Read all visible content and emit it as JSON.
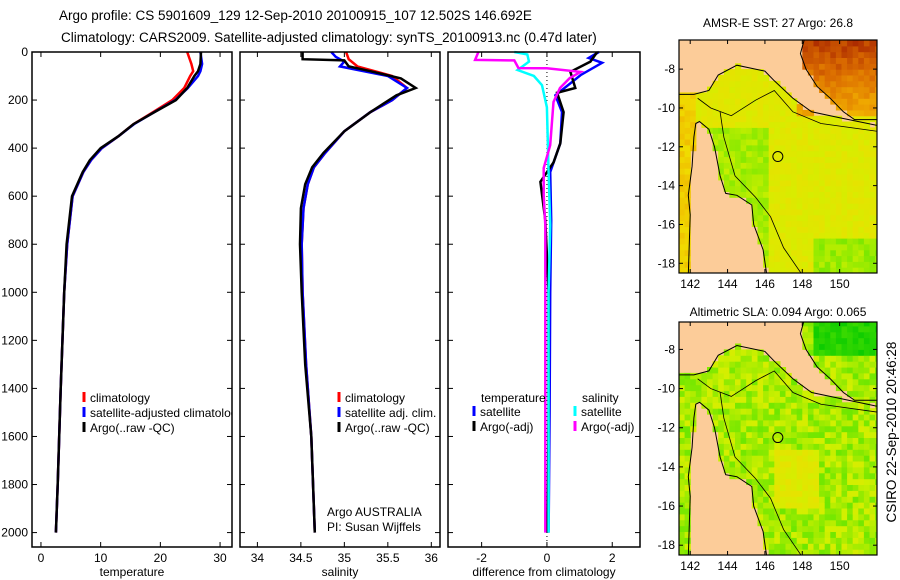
{
  "title_line1": "Argo profile: CS 5901609_129 12-Sep-2010 20100915_107 12.502S 146.692E",
  "title_line2": "Climatology: CARS2009. Satellite-adjusted climatology: synTS_20100913.nc (0.47d later)",
  "credit": "CSIRO 22-Sep-2010 20:46:28",
  "colors": {
    "climatology": "#ff0000",
    "satellite": "#0000ff",
    "argo": "#000000",
    "sal_satellite": "#00ffff",
    "sal_argo": "#ff00ff",
    "land": "#fccc99"
  },
  "chart_data": [
    {
      "type": "line",
      "id": "temperature",
      "xlabel": "temperature",
      "ylabel": "",
      "xlim": [
        -1.5,
        32
      ],
      "ylim": [
        2060,
        0
      ],
      "xticks": [
        0,
        10,
        20,
        30
      ],
      "yticks": [
        0,
        200,
        400,
        600,
        800,
        1000,
        1200,
        1400,
        1600,
        1800,
        2000
      ],
      "legend": [
        "climatology",
        "satellite-adjusted climatolog",
        "Argo(..raw -QC)"
      ],
      "series": [
        {
          "name": "climatology",
          "color": "#ff0000",
          "depth": [
            0,
            50,
            80,
            100,
            150,
            200,
            250,
            300,
            350,
            400,
            450,
            500,
            600,
            800,
            1000,
            1400,
            1800,
            2000
          ],
          "values": [
            24.5,
            25.2,
            25.5,
            25.0,
            24.0,
            22.0,
            18.8,
            15.5,
            13.0,
            10.2,
            8.4,
            7.1,
            5.3,
            4.4,
            3.9,
            3.3,
            2.8,
            2.5
          ]
        },
        {
          "name": "satellite-adjusted climatology",
          "color": "#0000ff",
          "depth": [
            0,
            50,
            80,
            100,
            150,
            200,
            250,
            300,
            350,
            400,
            450,
            500,
            600,
            800,
            1000,
            1400,
            1800,
            2000
          ],
          "values": [
            26.7,
            27.0,
            26.7,
            26.3,
            24.6,
            22.5,
            19.0,
            15.6,
            13.0,
            10.2,
            8.4,
            7.1,
            5.3,
            4.4,
            3.9,
            3.3,
            2.8,
            2.5
          ]
        },
        {
          "name": "Argo(..raw -QC)",
          "color": "#000000",
          "depth": [
            0,
            50,
            80,
            100,
            150,
            200,
            250,
            300,
            350,
            400,
            450,
            500,
            600,
            800,
            1000,
            1400,
            1800,
            2000
          ],
          "values": [
            26.8,
            26.7,
            26.3,
            25.7,
            24.5,
            22.6,
            19.0,
            15.5,
            13.0,
            10.0,
            8.2,
            7.0,
            5.2,
            4.3,
            3.9,
            3.3,
            2.8,
            2.5
          ]
        }
      ]
    },
    {
      "type": "line",
      "id": "salinity",
      "xlabel": "salinity",
      "xlim": [
        33.8,
        36.1
      ],
      "ylim": [
        2060,
        0
      ],
      "xticks": [
        34,
        34.5,
        35,
        35.5,
        36
      ],
      "legend": [
        "climatology",
        "satellite adj. clim.",
        "Argo(..raw -QC)"
      ],
      "annotation": [
        "Argo AUSTRALIA",
        "PI: Susan Wijffels"
      ],
      "series": [
        {
          "name": "climatology",
          "color": "#ff0000",
          "depth": [
            0,
            30,
            60,
            100,
            150,
            200,
            250,
            330,
            420,
            480,
            550,
            650,
            800,
            1000,
            1300,
            1600,
            2000
          ],
          "values": [
            35.02,
            35.05,
            35.15,
            35.55,
            35.72,
            35.55,
            35.3,
            35.0,
            34.78,
            34.65,
            34.58,
            34.53,
            34.51,
            34.52,
            34.56,
            34.62,
            34.66
          ]
        },
        {
          "name": "satellite adj. clim.",
          "color": "#0000ff",
          "depth": [
            0,
            20,
            40,
            60,
            100,
            150,
            200,
            250,
            330,
            420,
            480,
            550,
            650,
            800,
            1000,
            1300,
            1600,
            2000
          ],
          "values": [
            34.85,
            34.9,
            35.0,
            34.95,
            35.5,
            35.72,
            35.55,
            35.3,
            35.0,
            34.78,
            34.65,
            34.58,
            34.53,
            34.51,
            34.52,
            34.56,
            34.62,
            34.66
          ]
        },
        {
          "name": "Argo(..raw -QC)",
          "color": "#000000",
          "depth": [
            0,
            30,
            35,
            60,
            80,
            110,
            150,
            180,
            250,
            330,
            420,
            480,
            550,
            650,
            800,
            1000,
            1300,
            1600,
            2000
          ],
          "values": [
            34.52,
            34.52,
            35.0,
            35.05,
            35.3,
            35.65,
            35.82,
            35.6,
            35.3,
            35.0,
            34.76,
            34.63,
            34.55,
            34.5,
            34.49,
            34.51,
            34.55,
            34.62,
            34.66
          ]
        }
      ]
    },
    {
      "type": "line",
      "id": "difference",
      "xlabel": "difference from climatology",
      "xlim": [
        -3.03,
        2.85
      ],
      "ylim": [
        2060,
        0
      ],
      "xticks": [
        -2,
        0,
        2
      ],
      "legend": {
        "temperature_title": "temperature",
        "salinity_title": "salinity",
        "items": [
          "satellite",
          "Argo(-adj)",
          "satellite",
          "Argo(-adj)"
        ]
      },
      "series": [
        {
          "name": "temperature satellite",
          "color": "#0000ff",
          "depth": [
            0,
            25,
            45,
            96,
            180,
            250,
            380,
            500,
            700,
            1000,
            1500,
            2000
          ],
          "values": [
            1.59,
            1.28,
            1.69,
            1.03,
            0.26,
            0.46,
            0.41,
            0.1,
            0.13,
            0.1,
            0.08,
            0.05
          ]
        },
        {
          "name": "temperature Argo(-adj)",
          "color": "#000000",
          "depth": [
            0,
            40,
            83,
            150,
            170,
            250,
            380,
            460,
            540,
            700,
            1000,
            1500,
            2000
          ],
          "values": [
            1.54,
            1.33,
            0.72,
            0.87,
            0.31,
            0.51,
            0.41,
            0.2,
            -0.2,
            -0.05,
            0.05,
            0.05,
            0.02
          ]
        },
        {
          "name": "salinity satellite",
          "color": "#00ffff",
          "depth": [
            0,
            10,
            40,
            75,
            100,
            138,
            230,
            500,
            720,
            1000,
            1500,
            2000
          ],
          "values": [
            -1.0,
            -0.6,
            -0.55,
            -0.9,
            -0.4,
            -0.15,
            0.0,
            0.05,
            0.1,
            0.05,
            0.05,
            0.05
          ]
        },
        {
          "name": "salinity Argo(-adj)",
          "color": "#ff00ff",
          "depth": [
            0,
            33,
            35,
            67,
            68,
            83,
            108,
            150,
            208,
            388,
            483,
            596,
            720,
            1000,
            1500,
            2000
          ],
          "values": [
            -2.1,
            -2.2,
            -1.0,
            -0.87,
            0.0,
            1.03,
            0.7,
            0.4,
            0.2,
            0.1,
            -0.1,
            -0.1,
            -0.05,
            -0.05,
            -0.05,
            -0.05
          ]
        }
      ]
    },
    {
      "type": "heatmap",
      "id": "sst-map",
      "title": "AMSR-E SST: 27 Argo: 26.8",
      "xlim": [
        141.4,
        152
      ],
      "ylim": [
        -18.5,
        -6.5
      ],
      "xticks": [
        142,
        144,
        146,
        148,
        150
      ],
      "yticks": [
        -8,
        -10,
        -12,
        -14,
        -16,
        -18
      ],
      "profile_location": {
        "lon": 146.692,
        "lat": -12.502
      }
    },
    {
      "type": "heatmap",
      "id": "sla-map",
      "title": "Altimetric SLA: 0.094 Argo: 0.065",
      "xlim": [
        141.4,
        152
      ],
      "ylim": [
        -18.5,
        -6.6
      ],
      "xticks": [
        142,
        144,
        146,
        148,
        150
      ],
      "yticks": [
        -8,
        -10,
        -12,
        -14,
        -16,
        -18
      ],
      "profile_location": {
        "lon": 146.692,
        "lat": -12.502
      }
    }
  ]
}
